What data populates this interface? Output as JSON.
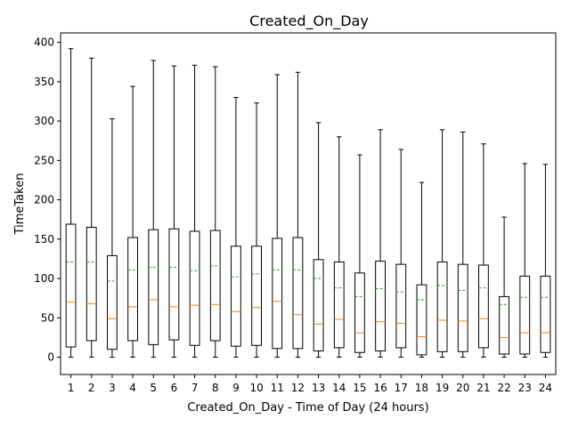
{
  "chart_data": {
    "type": "boxplot",
    "title": "Created_On_Day",
    "xlabel": "Created_On_Day - Time of Day (24 hours)",
    "ylabel": "TimeTaken",
    "ylim": [
      -22,
      412
    ],
    "yticks": [
      0,
      50,
      100,
      150,
      200,
      250,
      300,
      350,
      400
    ],
    "categories": [
      "1",
      "2",
      "3",
      "4",
      "5",
      "6",
      "7",
      "8",
      "9",
      "10",
      "11",
      "12",
      "13",
      "14",
      "15",
      "16",
      "17",
      "18",
      "19",
      "20",
      "21",
      "22",
      "23",
      "24"
    ],
    "median_color": "#ff7f0e",
    "mean_color": "#2ca02c",
    "mean_style": "dashed",
    "boxes": [
      {
        "whislo": 0,
        "q1": 13,
        "med": 70,
        "mean": 121,
        "q3": 169,
        "whishi": 392
      },
      {
        "whislo": 0,
        "q1": 21,
        "med": 68,
        "mean": 121,
        "q3": 165,
        "whishi": 380
      },
      {
        "whislo": 0,
        "q1": 10,
        "med": 49,
        "mean": 97,
        "q3": 129,
        "whishi": 303
      },
      {
        "whislo": 0,
        "q1": 21,
        "med": 64,
        "mean": 111,
        "q3": 152,
        "whishi": 344
      },
      {
        "whislo": 0,
        "q1": 16,
        "med": 73,
        "mean": 114,
        "q3": 162,
        "whishi": 377
      },
      {
        "whislo": 0,
        "q1": 22,
        "med": 64,
        "mean": 114,
        "q3": 163,
        "whishi": 370
      },
      {
        "whislo": 0,
        "q1": 15,
        "med": 66,
        "mean": 110,
        "q3": 160,
        "whishi": 371
      },
      {
        "whislo": 0,
        "q1": 21,
        "med": 67,
        "mean": 116,
        "q3": 161,
        "whishi": 369
      },
      {
        "whislo": 0,
        "q1": 14,
        "med": 58,
        "mean": 102,
        "q3": 141,
        "whishi": 330
      },
      {
        "whislo": 0,
        "q1": 15,
        "med": 63,
        "mean": 106,
        "q3": 141,
        "whishi": 323
      },
      {
        "whislo": 0,
        "q1": 11,
        "med": 71,
        "mean": 111,
        "q3": 151,
        "whishi": 359
      },
      {
        "whislo": 0,
        "q1": 11,
        "med": 54,
        "mean": 111,
        "q3": 152,
        "whishi": 362
      },
      {
        "whislo": 0,
        "q1": 8,
        "med": 42,
        "mean": 100,
        "q3": 124,
        "whishi": 298
      },
      {
        "whislo": 0,
        "q1": 12,
        "med": 48,
        "mean": 88,
        "q3": 121,
        "whishi": 280
      },
      {
        "whislo": 0,
        "q1": 6,
        "med": 31,
        "mean": 77,
        "q3": 107,
        "whishi": 257
      },
      {
        "whislo": 0,
        "q1": 8,
        "med": 45,
        "mean": 87,
        "q3": 122,
        "whishi": 289
      },
      {
        "whislo": 0,
        "q1": 12,
        "med": 43,
        "mean": 83,
        "q3": 118,
        "whishi": 264
      },
      {
        "whislo": 0,
        "q1": 3,
        "med": 26,
        "mean": 73,
        "q3": 92,
        "whishi": 222
      },
      {
        "whislo": 0,
        "q1": 7,
        "med": 47,
        "mean": 91,
        "q3": 121,
        "whishi": 289
      },
      {
        "whislo": 0,
        "q1": 7,
        "med": 46,
        "mean": 85,
        "q3": 118,
        "whishi": 286
      },
      {
        "whislo": 0,
        "q1": 12,
        "med": 49,
        "mean": 88,
        "q3": 117,
        "whishi": 271
      },
      {
        "whislo": 0,
        "q1": 4,
        "med": 25,
        "mean": 67,
        "q3": 77,
        "whishi": 178
      },
      {
        "whislo": 0,
        "q1": 4,
        "med": 31,
        "mean": 76,
        "q3": 103,
        "whishi": 246
      },
      {
        "whislo": 0,
        "q1": 6,
        "med": 31,
        "mean": 76,
        "q3": 103,
        "whishi": 245
      }
    ]
  }
}
